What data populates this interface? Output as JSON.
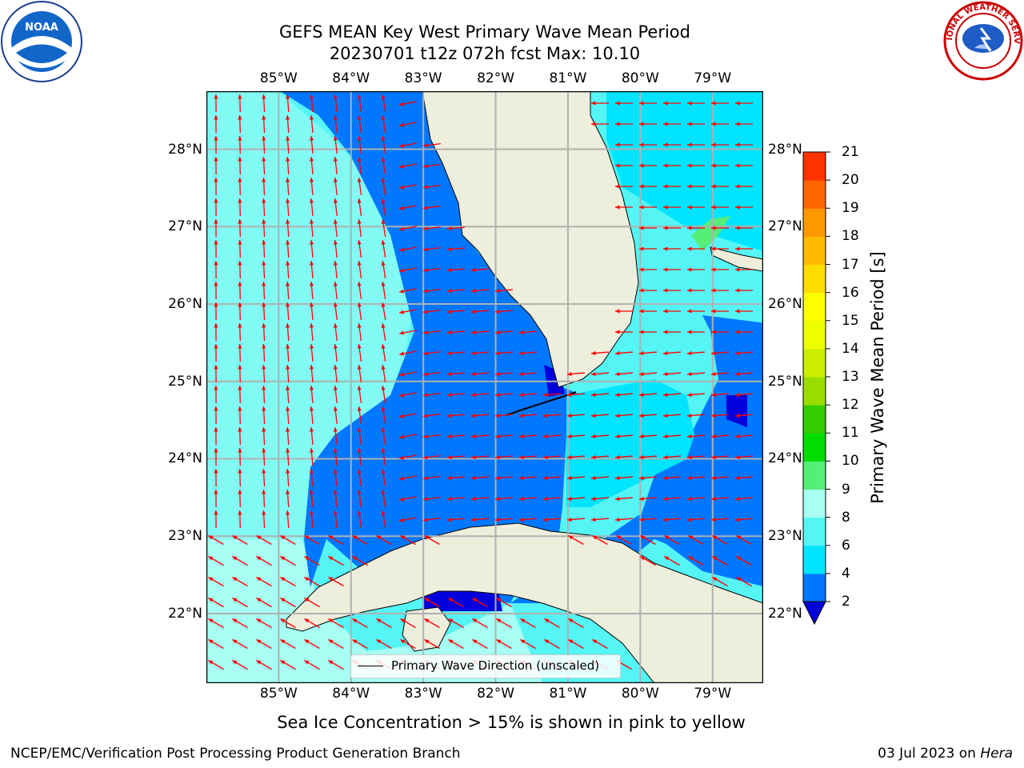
{
  "title": {
    "line1": "GEFS MEAN Key West Primary Wave Mean Period",
    "line2": "20230701 t12z 072h fcst   Max: 10.10"
  },
  "axes": {
    "lon_labels": [
      "85°W",
      "84°W",
      "83°W",
      "82°W",
      "81°W",
      "80°W",
      "79°W"
    ],
    "lat_labels": [
      "28°N",
      "27°N",
      "26°N",
      "25°N",
      "24°N",
      "23°N",
      "22°N"
    ],
    "lon_range": [
      -86.0,
      -78.3
    ],
    "lat_range": [
      21.1,
      28.75
    ]
  },
  "colorbar": {
    "label": "Primary Wave Mean Period [s]",
    "ticks": [
      "2",
      "4",
      "6",
      "8",
      "9",
      "10",
      "11",
      "12",
      "13",
      "14",
      "15",
      "16",
      "17",
      "18",
      "19",
      "20",
      "21"
    ],
    "colors": [
      "#0077ff",
      "#00e5ff",
      "#55f5f5",
      "#a6fff2",
      "#55ee77",
      "#00dd00",
      "#33cc00",
      "#99dd00",
      "#ccee00",
      "#eeff00",
      "#ffff00",
      "#ffdd00",
      "#ffbb00",
      "#ff9900",
      "#ff6600",
      "#ff3300",
      "#ff0000"
    ],
    "under_color": "#0000dd"
  },
  "legend": {
    "text": "Primary Wave Direction (unscaled)"
  },
  "colors": {
    "land": "#eeeedd",
    "deep_blue": "#0077ff",
    "cyan": "#00e5ff",
    "light_cyan": "#55f5f5",
    "pale_cyan": "#a6fff2",
    "arrow": "#ff0000",
    "grid": "#b0b0b0"
  },
  "max_value": 10.1,
  "seaice_note": "Sea Ice Concentration > 15% is shown in pink to yellow",
  "footer": {
    "left": "NCEP/EMC/Verification Post Processing Product Generation Branch",
    "date": "03 Jul 2023 on ",
    "machine": "Hera"
  },
  "logos": {
    "noaa": "NOAA",
    "nws": "NATIONAL WEATHER SERVICE"
  }
}
